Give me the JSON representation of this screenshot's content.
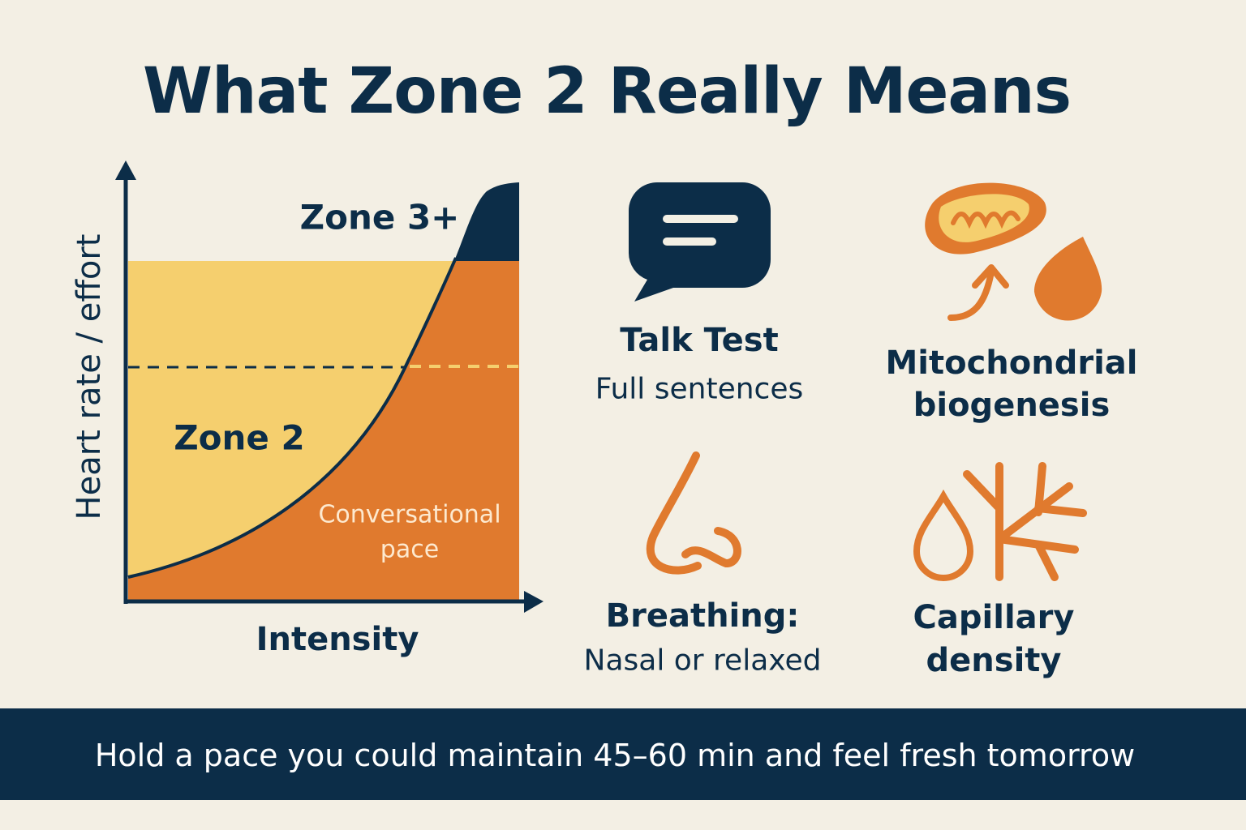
{
  "title": "What Zone 2 Really Means",
  "colors": {
    "background": "#f3efe4",
    "navy": "#0c2d48",
    "orange": "#e07a2e",
    "yellow": "#f5cf6e",
    "label_light": "#fde9cf"
  },
  "diagram": {
    "y_axis_label": "Heart rate / effort",
    "x_axis_label": "Intensity",
    "zone2_label": "Zone 2",
    "zone3_label": "Zone 3+",
    "pace_label_line1": "Conversational",
    "pace_label_line2": "pace"
  },
  "cards": [
    {
      "icon": "speech-bubble-icon",
      "title": "Talk Test",
      "subtitle": "Full sentences"
    },
    {
      "icon": "mitochondria-icon",
      "title_line1": "Mitochondrial",
      "title_line2": "biogenesis"
    },
    {
      "icon": "nose-icon",
      "title": "Breathing:",
      "subtitle": "Nasal or relaxed"
    },
    {
      "icon": "capillary-icon",
      "title_line1": "Capillary",
      "title_line2": "density"
    }
  ],
  "footer": "Hold a pace you could maintain 45–60 min and feel fresh tomorrow"
}
